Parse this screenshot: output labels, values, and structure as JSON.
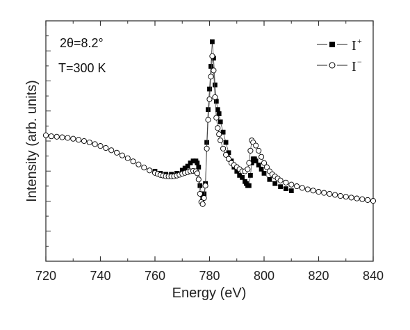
{
  "chart_data": {
    "type": "scatter",
    "title": "",
    "xlabel": "Energy (eV)",
    "ylabel": "Intensity (arb. units)",
    "xlim": [
      720,
      840
    ],
    "ylim": [
      0,
      1
    ],
    "x_ticks": [
      "720",
      "740",
      "760",
      "780",
      "800",
      "820",
      "840"
    ],
    "y_tick_labels_shown": false,
    "grid": false,
    "legend_position": "top-right",
    "annotations": [
      "2θ=8.2°",
      "T=300 K"
    ],
    "series": [
      {
        "name": "I+",
        "marker": "filled-square",
        "color": "#000000",
        "x": [
          760,
          762,
          764,
          766,
          768,
          770,
          771,
          772,
          773,
          774,
          775,
          775.5,
          776,
          776.5,
          777,
          777.5,
          778,
          778.5,
          779,
          779.5,
          780,
          780.5,
          781,
          781.5,
          782,
          782.5,
          783,
          783.5,
          784,
          785,
          786,
          787,
          788,
          789,
          790,
          791,
          792,
          793,
          793.5,
          794,
          794.5,
          795,
          795.5,
          796,
          796.5,
          797,
          798,
          799,
          800,
          802,
          804,
          806,
          808,
          810
        ],
        "y": [
          0.37,
          0.36,
          0.355,
          0.355,
          0.36,
          0.375,
          0.385,
          0.395,
          0.41,
          0.42,
          0.42,
          0.41,
          0.39,
          0.3,
          0.26,
          0.24,
          0.26,
          0.31,
          0.51,
          0.67,
          0.77,
          0.88,
          1.0,
          0.92,
          0.79,
          0.71,
          0.67,
          0.65,
          0.61,
          0.56,
          0.51,
          0.46,
          0.42,
          0.39,
          0.37,
          0.35,
          0.34,
          0.32,
          0.31,
          0.3,
          0.3,
          0.35,
          0.41,
          0.43,
          0.43,
          0.42,
          0.4,
          0.38,
          0.36,
          0.33,
          0.31,
          0.295,
          0.285,
          0.275
        ]
      },
      {
        "name": "I−",
        "marker": "open-circle",
        "color": "#000000",
        "x": [
          720,
          722,
          724,
          726,
          728,
          730,
          732,
          734,
          736,
          738,
          740,
          742,
          744,
          746,
          748,
          750,
          752,
          754,
          756,
          758,
          760,
          761,
          762,
          763,
          764,
          765,
          766,
          767,
          768,
          769,
          770,
          771,
          772,
          773,
          774,
          775,
          775.5,
          776,
          776.5,
          777,
          777.5,
          778,
          778.5,
          779,
          779.5,
          780,
          780.5,
          781,
          781.5,
          782,
          782.5,
          783,
          783.5,
          784,
          785,
          786,
          787,
          788,
          789,
          790,
          791,
          792,
          793,
          794,
          794.5,
          795,
          795.5,
          796,
          797,
          798,
          799,
          800,
          801,
          802,
          803,
          804,
          805,
          806,
          808,
          810,
          812,
          814,
          816,
          818,
          820,
          822,
          824,
          826,
          828,
          830,
          832,
          834,
          836,
          838,
          840
        ],
        "y": [
          0.545,
          0.54,
          0.538,
          0.535,
          0.532,
          0.528,
          0.523,
          0.517,
          0.51,
          0.502,
          0.493,
          0.483,
          0.472,
          0.46,
          0.447,
          0.433,
          0.418,
          0.403,
          0.388,
          0.374,
          0.362,
          0.357,
          0.352,
          0.349,
          0.346,
          0.345,
          0.345,
          0.346,
          0.349,
          0.353,
          0.358,
          0.362,
          0.366,
          0.37,
          0.372,
          0.37,
          0.36,
          0.33,
          0.26,
          0.22,
          0.21,
          0.24,
          0.3,
          0.48,
          0.62,
          0.72,
          0.83,
          0.93,
          0.86,
          0.73,
          0.63,
          0.58,
          0.55,
          0.52,
          0.48,
          0.45,
          0.43,
          0.41,
          0.4,
          0.39,
          0.38,
          0.37,
          0.37,
          0.38,
          0.41,
          0.47,
          0.52,
          0.51,
          0.495,
          0.47,
          0.44,
          0.41,
          0.39,
          0.37,
          0.355,
          0.345,
          0.335,
          0.325,
          0.315,
          0.305,
          0.297,
          0.289,
          0.282,
          0.276,
          0.27,
          0.265,
          0.26,
          0.255,
          0.25,
          0.246,
          0.242,
          0.238,
          0.234,
          0.23,
          0.226
        ]
      }
    ]
  }
}
